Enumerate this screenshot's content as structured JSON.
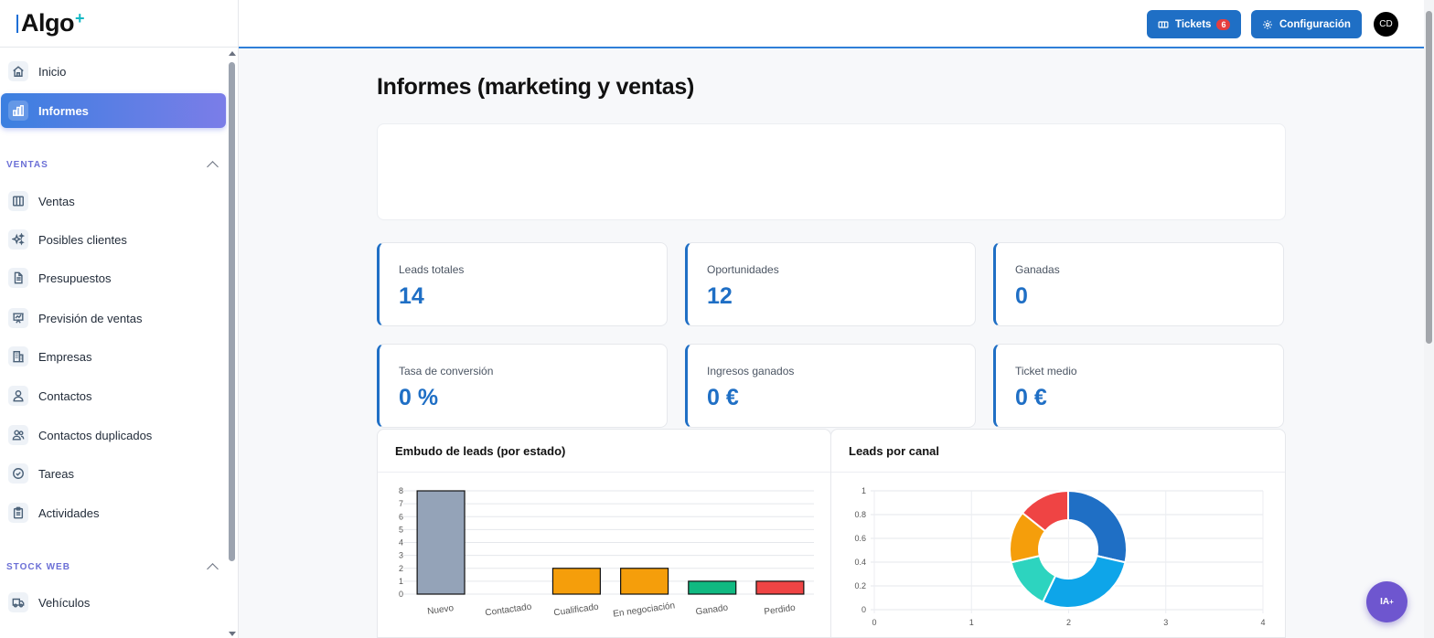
{
  "brand": {
    "name": "Algo",
    "suffix": "+"
  },
  "sidebar": {
    "items": [
      {
        "label": "Inicio",
        "icon": "home-icon"
      },
      {
        "label": "Informes",
        "icon": "bar-chart-icon",
        "active": true
      }
    ],
    "sections": [
      {
        "title": "VENTAS",
        "items": [
          {
            "label": "Ventas",
            "icon": "columns-icon"
          },
          {
            "label": "Posibles clientes",
            "icon": "sparkles-icon"
          },
          {
            "label": "Presupuestos",
            "icon": "document-icon"
          },
          {
            "label": "Previsión de ventas",
            "icon": "presentation-chart-icon"
          },
          {
            "label": "Empresas",
            "icon": "building-icon"
          },
          {
            "label": "Contactos",
            "icon": "user-icon"
          },
          {
            "label": "Contactos duplicados",
            "icon": "users-icon"
          },
          {
            "label": "Tareas",
            "icon": "check-circle-icon"
          },
          {
            "label": "Actividades",
            "icon": "clipboard-icon"
          }
        ]
      },
      {
        "title": "STOCK WEB",
        "items": [
          {
            "label": "Vehículos",
            "icon": "truck-icon"
          }
        ]
      }
    ]
  },
  "header": {
    "tickets_label": "Tickets",
    "tickets_count": "6",
    "config_label": "Configuración",
    "avatar_initials": "CD"
  },
  "page": {
    "title": "Informes (marketing y ventas)"
  },
  "kpis": [
    {
      "label": "Leads totales",
      "value": "14"
    },
    {
      "label": "Oportunidades",
      "value": "12"
    },
    {
      "label": "Ganadas",
      "value": "0"
    },
    {
      "label": "Tasa de conversión",
      "value": "0 %"
    },
    {
      "label": "Ingresos ganados",
      "value": "0 €"
    },
    {
      "label": "Ticket medio",
      "value": "0 €"
    }
  ],
  "panels": {
    "funnel_title": "Embudo de leads (por estado)",
    "channel_title": "Leads por canal"
  },
  "ia_button": {
    "label": "IA",
    "sup": "+"
  },
  "colors": {
    "accent": "#1f6fc5",
    "active_gradient_start": "#3b7fe0",
    "active_gradient_end": "#7b7de8",
    "ia": "#6e56cf"
  },
  "chart_data": [
    {
      "type": "bar",
      "categories": [
        "Nuevo",
        "Contactado",
        "Cualificado",
        "En negociación",
        "Ganado",
        "Perdido"
      ],
      "values": [
        8,
        0,
        2,
        2,
        1,
        1
      ],
      "colors": [
        "#94a3b8",
        "#3b82f6",
        "#f59e0b",
        "#f59e0b",
        "#10b981",
        "#ef4444"
      ],
      "ylim": [
        0,
        8
      ],
      "yticks": [
        0,
        1,
        2,
        3,
        4,
        5,
        6,
        7,
        8
      ],
      "grid": true
    },
    {
      "type": "pie",
      "style": "doughnut",
      "values": [
        4,
        4,
        2,
        2,
        2
      ],
      "colors": [
        "#1f6fc5",
        "#0ea5e9",
        "#2dd4bf",
        "#f59e0b",
        "#ef4444"
      ],
      "xticks": [
        0,
        1,
        2,
        3,
        4
      ],
      "yticks": [
        0,
        0.2,
        0.4,
        0.6,
        0.8,
        1
      ],
      "grid": true
    }
  ]
}
